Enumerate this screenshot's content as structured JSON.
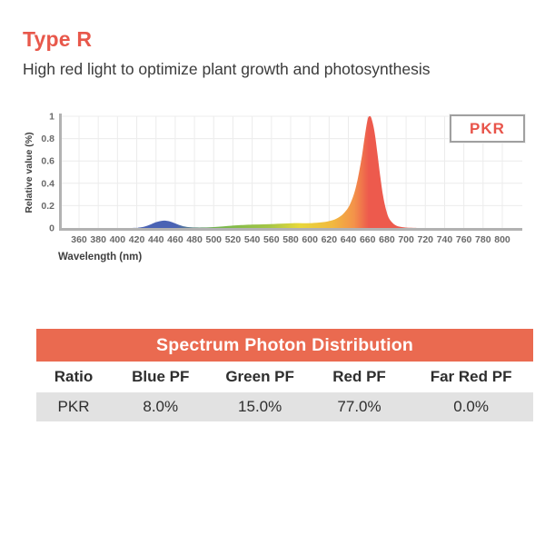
{
  "header": {
    "title": "Type R",
    "subtitle": "High red light to optimize plant growth and photosynthesis"
  },
  "colors": {
    "accent_orange": "#EA6A50",
    "title_text": "#E8584B",
    "legend_text": "#E8544A",
    "body_text": "#3B3B3B",
    "table_row_bg": "#E2E2E2",
    "axis_line": "#B2B2B2",
    "gridline": "#ECECEC",
    "tick_text": "#6A6A6A",
    "spectrum_blue": "#4A63B4",
    "spectrum_green": "#72B54C",
    "spectrum_yellow": "#E8D83A",
    "spectrum_orange": "#F3924A",
    "spectrum_red": "#ED5A4D"
  },
  "chart_data": {
    "type": "area",
    "title": "",
    "legend": "PKR",
    "legend_position": "top-right",
    "xlabel": "Wavelength (nm)",
    "ylabel": "Relative value (%)",
    "xlim": [
      360,
      800
    ],
    "ylim": [
      0,
      1
    ],
    "grid": true,
    "x_ticks": [
      360,
      380,
      400,
      420,
      440,
      460,
      480,
      500,
      520,
      540,
      560,
      580,
      600,
      620,
      640,
      660,
      680,
      700,
      720,
      740,
      760,
      780,
      800
    ],
    "y_ticks": [
      0,
      0.2,
      0.4,
      0.6,
      0.8,
      1
    ],
    "series": [
      {
        "name": "PKR",
        "x": [
          360,
          415,
          422,
          428,
          434,
          440,
          447,
          452,
          458,
          464,
          470,
          477,
          485,
          495,
          505,
          515,
          525,
          540,
          555,
          570,
          582,
          592,
          602,
          612,
          620,
          628,
          635,
          641,
          646,
          650,
          654,
          657,
          660,
          662,
          664,
          667,
          670,
          673,
          676,
          679,
          682,
          686,
          690,
          695,
          701,
          710,
          720,
          800
        ],
        "y": [
          0,
          0,
          0.004,
          0.012,
          0.03,
          0.052,
          0.065,
          0.063,
          0.048,
          0.028,
          0.013,
          0.006,
          0.004,
          0.006,
          0.011,
          0.018,
          0.024,
          0.03,
          0.033,
          0.038,
          0.043,
          0.043,
          0.044,
          0.05,
          0.062,
          0.085,
          0.13,
          0.2,
          0.31,
          0.45,
          0.64,
          0.82,
          0.97,
          1,
          0.98,
          0.87,
          0.68,
          0.47,
          0.29,
          0.17,
          0.09,
          0.045,
          0.02,
          0.009,
          0.003,
          0.001,
          0,
          0
        ]
      }
    ],
    "gradient_stops": [
      {
        "at": 360,
        "color": "#4A63B4"
      },
      {
        "at": 461,
        "color": "#4A63B4"
      },
      {
        "at": 501,
        "color": "#72B54C"
      },
      {
        "at": 558,
        "color": "#A5C645"
      },
      {
        "at": 589,
        "color": "#E8D83A"
      },
      {
        "at": 624,
        "color": "#F2B83F"
      },
      {
        "at": 646,
        "color": "#F3924A"
      },
      {
        "at": 661,
        "color": "#ED5A4D"
      },
      {
        "at": 800,
        "color": "#ED5A4D"
      }
    ]
  },
  "table": {
    "title": "Spectrum Photon Distribution",
    "columns": [
      "Ratio",
      "Blue PF",
      "Green PF",
      "Red PF",
      "Far Red PF"
    ],
    "rows": [
      {
        "ratio": "PKR",
        "blue": "8.0%",
        "green": "15.0%",
        "red": "77.0%",
        "far_red": "0.0%"
      }
    ]
  }
}
